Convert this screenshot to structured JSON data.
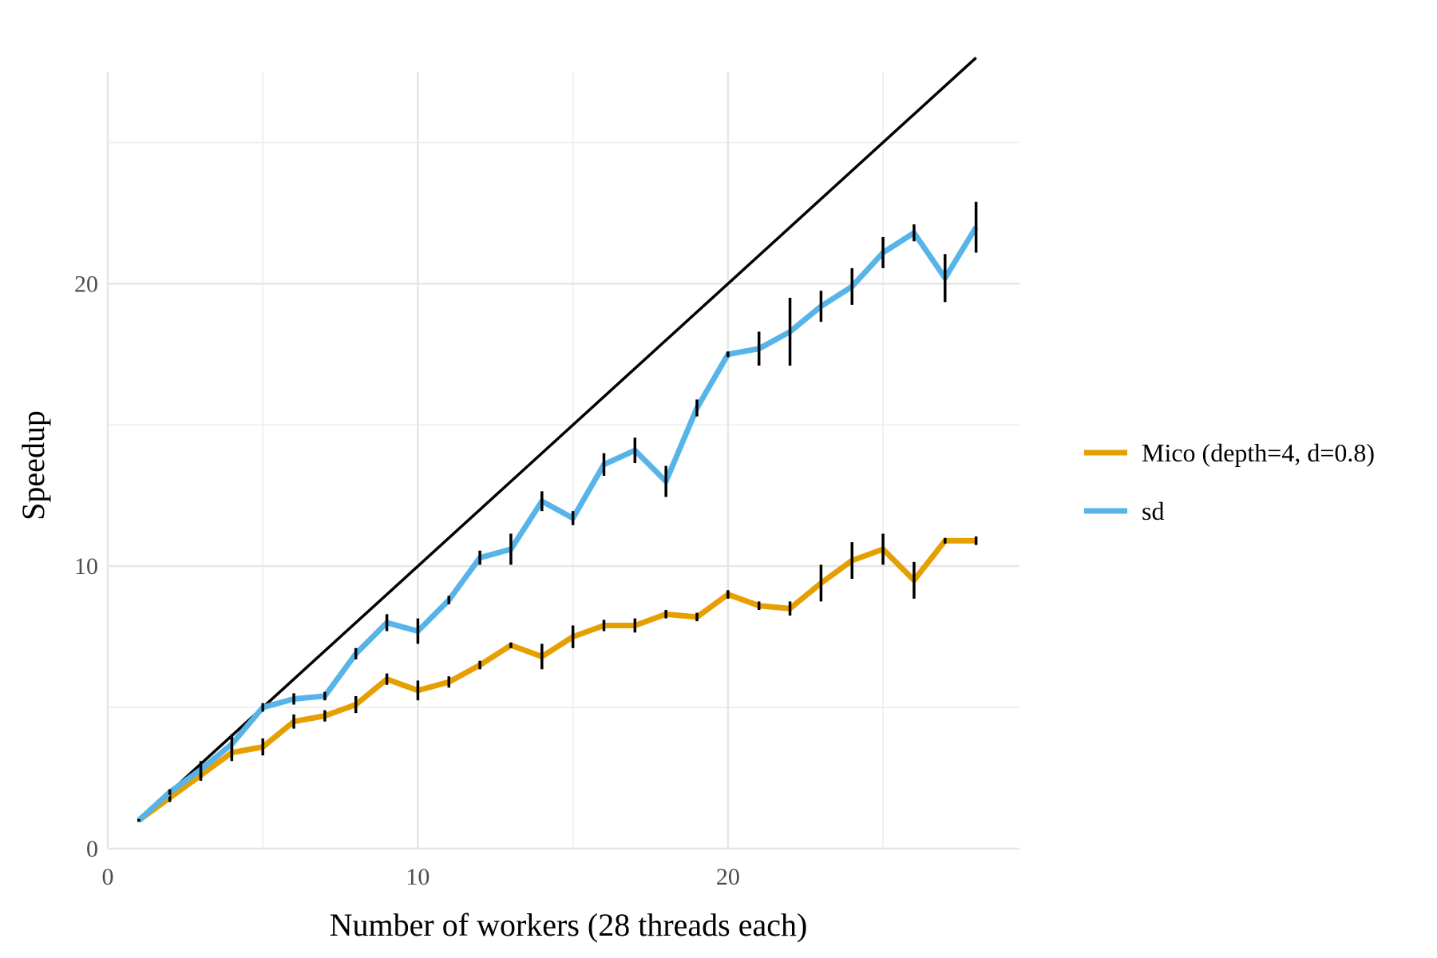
{
  "chart_data": {
    "type": "line",
    "title": "",
    "xlabel": "Number of workers (28 threads each)",
    "ylabel": "Speedup",
    "xlim": [
      0,
      29.4
    ],
    "ylim": [
      0,
      27.5
    ],
    "x_ticks": [
      0,
      10,
      20
    ],
    "y_ticks": [
      0,
      10,
      20
    ],
    "grid": true,
    "legend_position": "right",
    "reference_line": {
      "x": [
        1,
        28
      ],
      "y": [
        1,
        28
      ],
      "color": "#000000"
    },
    "series": [
      {
        "name": "Mico (depth=4, d=0.8)",
        "color": "#E69F00",
        "x": [
          1,
          2,
          3,
          4,
          5,
          6,
          7,
          8,
          9,
          10,
          11,
          12,
          13,
          14,
          15,
          16,
          17,
          18,
          19,
          20,
          21,
          22,
          23,
          24,
          25,
          26,
          27,
          28
        ],
        "y": [
          1.0,
          1.8,
          2.6,
          3.4,
          3.6,
          4.5,
          4.7,
          5.1,
          6.0,
          5.6,
          5.9,
          6.5,
          7.2,
          6.8,
          7.5,
          7.9,
          7.9,
          8.3,
          8.2,
          9.0,
          8.6,
          8.5,
          9.4,
          10.2,
          10.6,
          9.5,
          10.9,
          10.9
        ],
        "err": [
          0.05,
          0.15,
          0.2,
          0.3,
          0.3,
          0.25,
          0.2,
          0.3,
          0.2,
          0.35,
          0.2,
          0.15,
          0.1,
          0.45,
          0.4,
          0.2,
          0.25,
          0.15,
          0.15,
          0.15,
          0.15,
          0.25,
          0.65,
          0.65,
          0.55,
          0.65,
          0.1,
          0.15
        ]
      },
      {
        "name": "sd",
        "color": "#56B4E9",
        "x": [
          1,
          2,
          3,
          4,
          5,
          6,
          7,
          8,
          9,
          10,
          11,
          12,
          13,
          14,
          15,
          16,
          17,
          18,
          19,
          20,
          21,
          22,
          23,
          24,
          25,
          26,
          27,
          28
        ],
        "y": [
          1.0,
          2.0,
          2.8,
          3.7,
          5.0,
          5.3,
          5.4,
          6.9,
          8.0,
          7.7,
          8.8,
          10.3,
          10.6,
          12.3,
          11.7,
          13.6,
          14.1,
          13.0,
          15.6,
          17.5,
          17.7,
          18.3,
          19.2,
          19.9,
          21.1,
          21.8,
          20.2,
          22.0
        ],
        "err": [
          0.05,
          0.1,
          0.3,
          0.35,
          0.15,
          0.2,
          0.15,
          0.2,
          0.3,
          0.45,
          0.15,
          0.25,
          0.55,
          0.35,
          0.25,
          0.4,
          0.45,
          0.55,
          0.3,
          0.1,
          0.6,
          1.2,
          0.55,
          0.65,
          0.55,
          0.3,
          0.85,
          0.9
        ]
      }
    ]
  }
}
